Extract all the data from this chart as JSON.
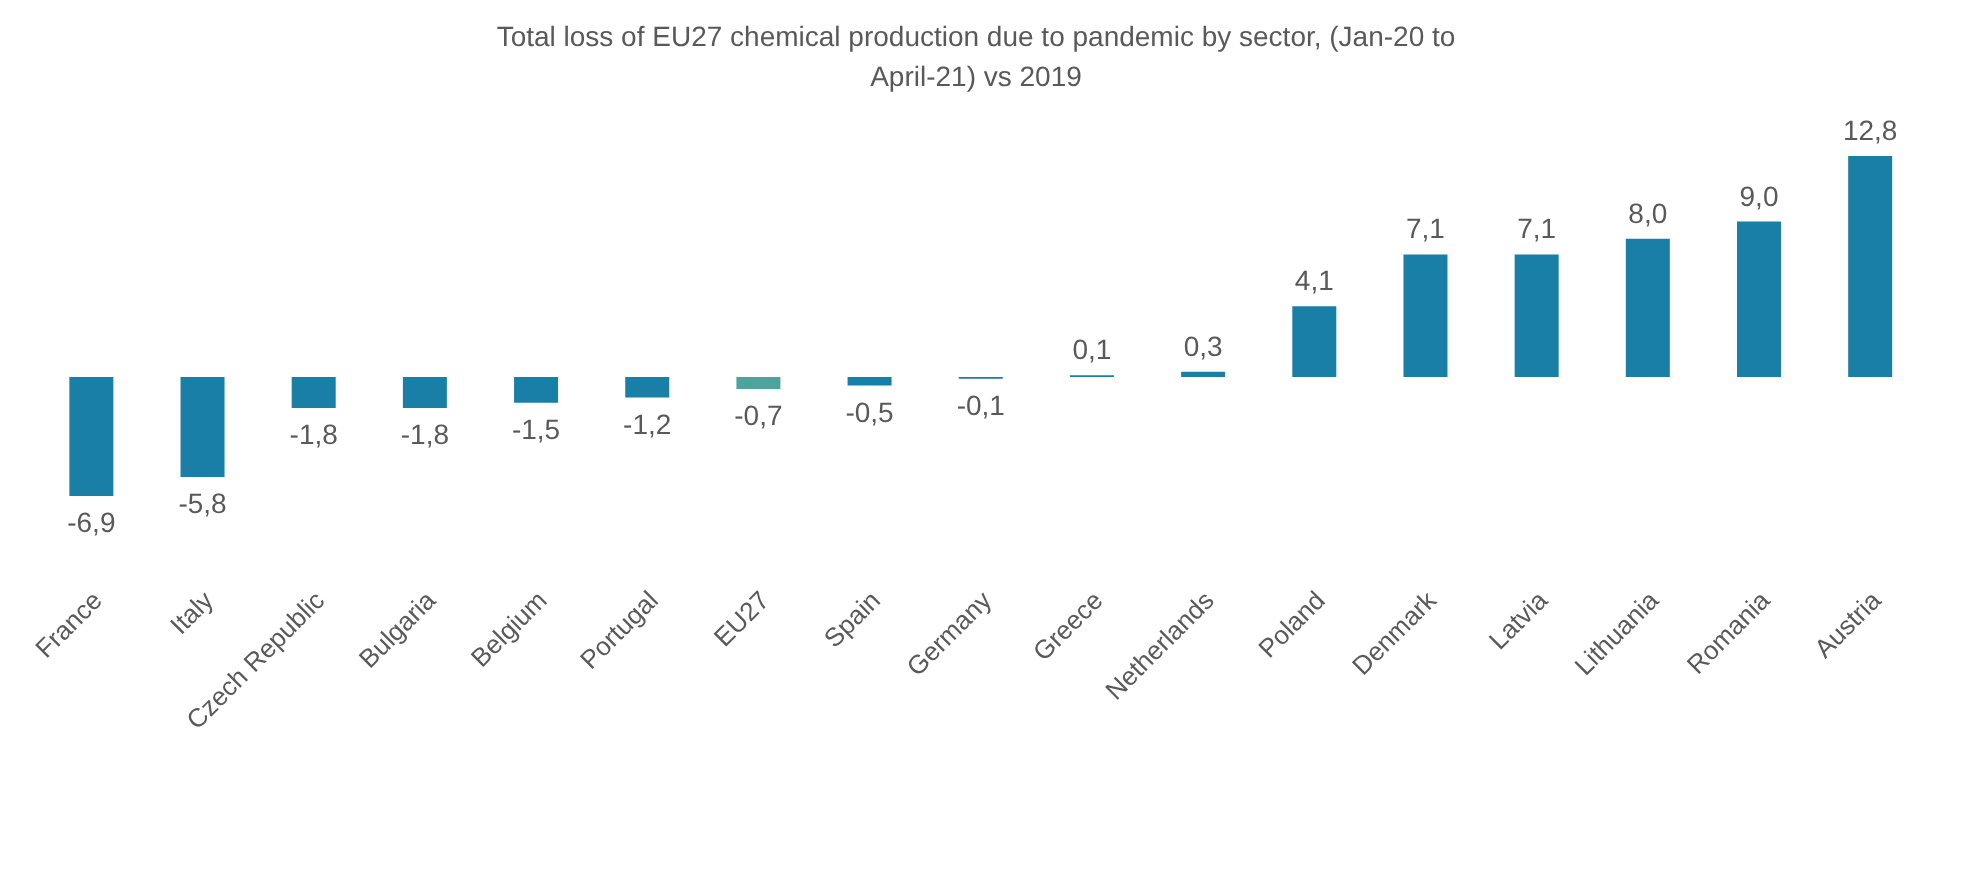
{
  "chart_data": {
    "type": "bar",
    "title": "Total loss of EU27 chemical production due to pandemic by sector, (Jan-20 to April-21) vs 2019",
    "categories": [
      "France",
      "Italy",
      "Czech Republic",
      "Bulgaria",
      "Belgium",
      "Portugal",
      "EU27",
      "Spain",
      "Germany",
      "Greece",
      "Netherlands",
      "Poland",
      "Denmark",
      "Latvia",
      "Lithuania",
      "Romania",
      "Austria"
    ],
    "values": [
      -6.9,
      -5.8,
      -1.8,
      -1.8,
      -1.5,
      -1.2,
      -0.7,
      -0.5,
      -0.1,
      0.1,
      0.3,
      4.1,
      7.1,
      7.1,
      8.0,
      9.0,
      12.8
    ],
    "value_labels": [
      "-6,9",
      "-5,8",
      "-1,8",
      "-1,8",
      "-1,5",
      "-1,2",
      "-0,7",
      "-0,5",
      "-0,1",
      "0,1",
      "0,3",
      "4,1",
      "7,1",
      "7,1",
      "8,0",
      "9,0",
      "12,8"
    ],
    "colors": [
      "#1a7fa6",
      "#1a7fa6",
      "#1a7fa6",
      "#1a7fa6",
      "#1a7fa6",
      "#1a7fa6",
      "#4fa39c",
      "#1a7fa6",
      "#1a7fa6",
      "#1a7fa6",
      "#1a7fa6",
      "#1a7fa6",
      "#1a7fa6",
      "#1a7fa6",
      "#1a7fa6",
      "#1a7fa6",
      "#1a7fa6"
    ],
    "tick_labels": "x"
  }
}
